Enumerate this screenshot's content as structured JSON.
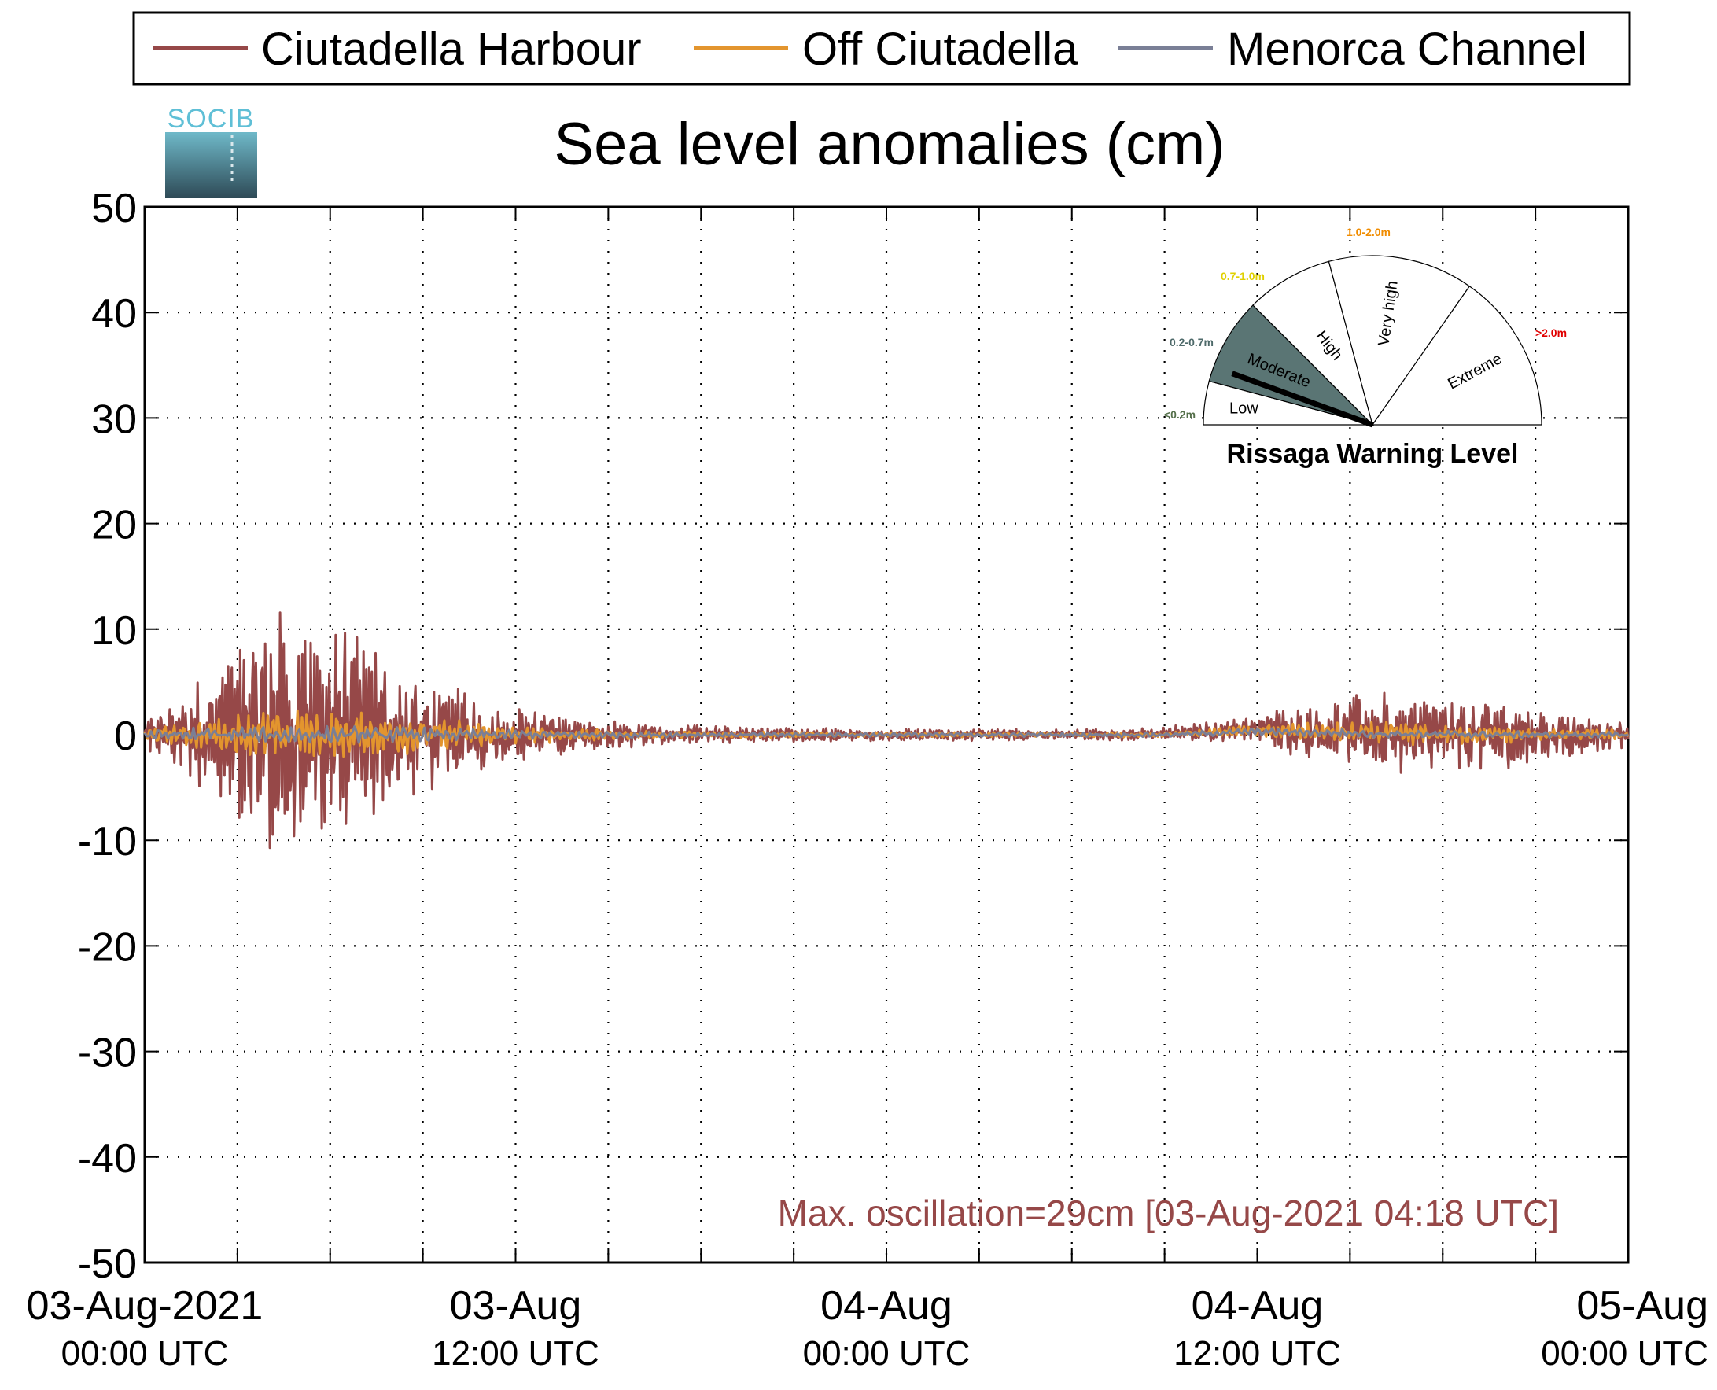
{
  "chart_data": {
    "type": "line",
    "title": "Sea level anomalies (cm)",
    "xlabel": "",
    "ylabel": "",
    "ylim": [
      -50,
      50
    ],
    "yticks": [
      50,
      40,
      30,
      20,
      10,
      0,
      -10,
      -20,
      -30,
      -40,
      -50
    ],
    "yticks_labels": [
      "50",
      "40",
      "30",
      "20",
      "10",
      "0",
      "-10",
      "-20",
      "-30",
      "-40",
      "-50"
    ],
    "xlim": [
      "2021-08-03 00:00",
      "2021-08-05 00:00"
    ],
    "x_major_ticks": [
      {
        "line1": "03-Aug-2021",
        "line2": "00:00 UTC",
        "t": "2021-08-03 00:00"
      },
      {
        "line1": "03-Aug",
        "line2": "12:00 UTC",
        "t": "2021-08-03 12:00"
      },
      {
        "line1": "04-Aug",
        "line2": "00:00 UTC",
        "t": "2021-08-04 00:00"
      },
      {
        "line1": "04-Aug",
        "line2": "12:00 UTC",
        "t": "2021-08-04 12:00"
      },
      {
        "line1": "05-Aug",
        "line2": "00:00 UTC",
        "t": "2021-08-05 00:00"
      }
    ],
    "x_minor_tick_hours": [
      3,
      6,
      9,
      12,
      15,
      18,
      21,
      24,
      27,
      30,
      33,
      36,
      39,
      42,
      45
    ],
    "grid": true,
    "legend": "top",
    "series": [
      {
        "name": "Ciutadella Harbour",
        "color": "#964848",
        "envelope": {
          "x": [
            "2021-08-03 00:00",
            "2021-08-03 00:45",
            "2021-08-03 01:30",
            "2021-08-03 02:15",
            "2021-08-03 03:00",
            "2021-08-03 03:30",
            "2021-08-03 04:00",
            "2021-08-03 04:30",
            "2021-08-03 05:15",
            "2021-08-03 06:00",
            "2021-08-03 07:00",
            "2021-08-03 08:00",
            "2021-08-03 09:00",
            "2021-08-03 10:00",
            "2021-08-03 11:00",
            "2021-08-03 12:00",
            "2021-08-03 13:00",
            "2021-08-03 14:00",
            "2021-08-03 15:00",
            "2021-08-03 16:00",
            "2021-08-03 18:00",
            "2021-08-03 21:00",
            "2021-08-04 00:00",
            "2021-08-04 04:00",
            "2021-08-04 07:00",
            "2021-08-04 09:00",
            "2021-08-04 10:30",
            "2021-08-04 11:30",
            "2021-08-04 12:00",
            "2021-08-04 13:00",
            "2021-08-04 14:00",
            "2021-08-04 15:00",
            "2021-08-04 16:00",
            "2021-08-04 17:00",
            "2021-08-04 18:00",
            "2021-08-04 19:00",
            "2021-08-04 20:00",
            "2021-08-04 21:00",
            "2021-08-04 22:00",
            "2021-08-04 23:00",
            "2021-08-05 00:00"
          ],
          "amplitude": [
            1.5,
            2.5,
            4,
            6,
            8,
            10,
            13,
            11,
            9,
            9,
            9,
            6,
            5,
            4,
            3,
            2.5,
            2,
            1.5,
            1.2,
            1,
            0.8,
            0.6,
            0.5,
            0.5,
            0.5,
            0.6,
            0.8,
            1,
            1.2,
            2,
            2.5,
            3,
            3.5,
            3.5,
            3,
            3,
            3,
            2.5,
            2,
            1.5,
            1.2
          ],
          "offset": [
            0,
            0,
            0,
            0,
            0,
            0,
            0,
            0,
            0,
            0,
            0,
            0,
            0,
            0,
            0,
            0,
            0,
            0,
            0,
            0,
            0,
            0,
            0,
            0,
            0,
            0.1,
            0.3,
            0.5,
            0.6,
            0.4,
            0.3,
            0.2,
            0.2,
            0.1,
            0,
            0,
            0,
            0,
            0,
            0,
            0
          ]
        }
      },
      {
        "name": "Off Ciutadella",
        "color": "#e3952e",
        "envelope": {
          "x": [
            "2021-08-03 00:00",
            "2021-08-03 02:00",
            "2021-08-03 04:00",
            "2021-08-03 06:00",
            "2021-08-03 08:00",
            "2021-08-03 10:00",
            "2021-08-03 12:00",
            "2021-08-03 15:00",
            "2021-08-03 18:00",
            "2021-08-04 00:00",
            "2021-08-04 09:00",
            "2021-08-04 11:30",
            "2021-08-04 13:00",
            "2021-08-04 16:00",
            "2021-08-04 19:00",
            "2021-08-04 22:00",
            "2021-08-05 00:00"
          ],
          "amplitude": [
            0.6,
            1.4,
            2.2,
            2,
            1.8,
            1.3,
            0.8,
            0.5,
            0.3,
            0.2,
            0.2,
            0.4,
            0.7,
            1,
            0.8,
            0.6,
            0.4
          ],
          "offset": [
            0,
            0,
            0,
            0,
            0,
            0,
            0,
            0,
            0,
            0,
            0,
            0.4,
            0.3,
            0.1,
            0,
            0,
            0
          ]
        }
      },
      {
        "name": "Menorca Channel",
        "color": "#7a7f96",
        "envelope": {
          "x": [
            "2021-08-03 00:00",
            "2021-08-03 03:00",
            "2021-08-03 06:00",
            "2021-08-03 09:00",
            "2021-08-03 12:00",
            "2021-08-03 18:00",
            "2021-08-04 00:00",
            "2021-08-04 09:00",
            "2021-08-04 12:00",
            "2021-08-04 16:00",
            "2021-08-04 20:00",
            "2021-08-05 00:00"
          ],
          "amplitude": [
            0.4,
            0.9,
            0.8,
            0.6,
            0.4,
            0.2,
            0.2,
            0.2,
            0.3,
            0.4,
            0.3,
            0.2
          ],
          "offset": [
            0,
            0,
            0,
            0,
            0,
            0,
            0,
            0,
            0.3,
            0.1,
            0,
            0
          ]
        }
      }
    ],
    "annotations": [
      {
        "text": "Max. oscillation=29cm [03-Aug-2021 04:18 UTC]",
        "color": "#964848",
        "position": "bottom-right"
      }
    ]
  },
  "logo": {
    "text": "SOCIB"
  },
  "gauge": {
    "title": "Rissaga Warning Level",
    "pointer_level": "Moderate",
    "pointer_fraction": 0.83,
    "levels": [
      {
        "label": "Low",
        "range": "<0.2m",
        "range_color": "#55704b",
        "filled": false
      },
      {
        "label": "Moderate",
        "range": "0.2-0.7m",
        "range_color": "#4e6a6a",
        "filled": true,
        "fill": "#5a7574"
      },
      {
        "label": "High",
        "range": "0.7-1.0m",
        "range_color": "#e0d000",
        "filled": false
      },
      {
        "label": "Very high",
        "range": "1.0-2.0m",
        "range_color": "#f08c00",
        "filled": false
      },
      {
        "label": "Extreme",
        "range": ">2.0m",
        "range_color": "#e00000",
        "filled": false
      }
    ]
  }
}
